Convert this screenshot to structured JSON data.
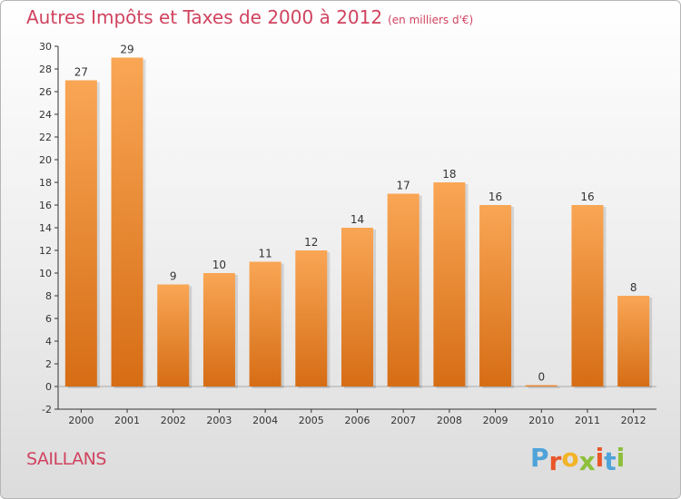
{
  "title": "Autres Impôts et Taxes de 2000 à 2012",
  "unit_note": "(en milliers d'€)",
  "commune": "SAILLANS",
  "logo_text": "Proxiti",
  "colors": {
    "title": "#d0435f",
    "bar_top": "#f9a655",
    "bar_bottom": "#d66d15"
  },
  "chart_data": {
    "type": "bar",
    "categories": [
      "2000",
      "2001",
      "2002",
      "2003",
      "2004",
      "2005",
      "2006",
      "2007",
      "2008",
      "2009",
      "2010",
      "2011",
      "2012"
    ],
    "values": [
      27,
      29,
      9,
      10,
      11,
      12,
      14,
      17,
      18,
      16,
      0,
      16,
      8
    ],
    "ylim": [
      -2,
      30
    ],
    "yticks": [
      -2,
      0,
      2,
      4,
      6,
      8,
      10,
      12,
      14,
      16,
      18,
      20,
      22,
      24,
      26,
      28,
      30
    ],
    "grid": false,
    "data_labels": true
  }
}
